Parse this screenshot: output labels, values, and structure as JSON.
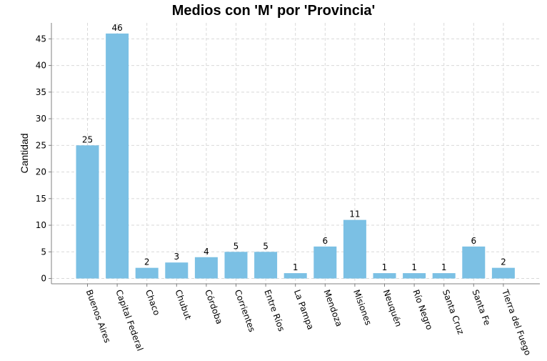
{
  "chart_data": {
    "type": "bar",
    "title": "Medios con 'M' por 'Provincia'",
    "xlabel": "",
    "ylabel": "Cantidad",
    "categories": [
      "Buenos Aires",
      "Capital Federal",
      "Chaco",
      "Chubut",
      "Córdoba",
      "Corrientes",
      "Entre Ríos",
      "La Pampa",
      "Mendoza",
      "Misiones",
      "Neuquén",
      "Río Negro",
      "Santa Cruz",
      "Santa Fe",
      "Tierra del Fuego"
    ],
    "values": [
      25,
      46,
      2,
      3,
      4,
      5,
      5,
      1,
      6,
      11,
      1,
      1,
      1,
      6,
      2
    ],
    "ylim": [
      -1,
      48
    ],
    "yticks": [
      0,
      5,
      10,
      15,
      20,
      25,
      30,
      35,
      40,
      45
    ],
    "grid": true,
    "bar_color": "#7bc0e4"
  }
}
